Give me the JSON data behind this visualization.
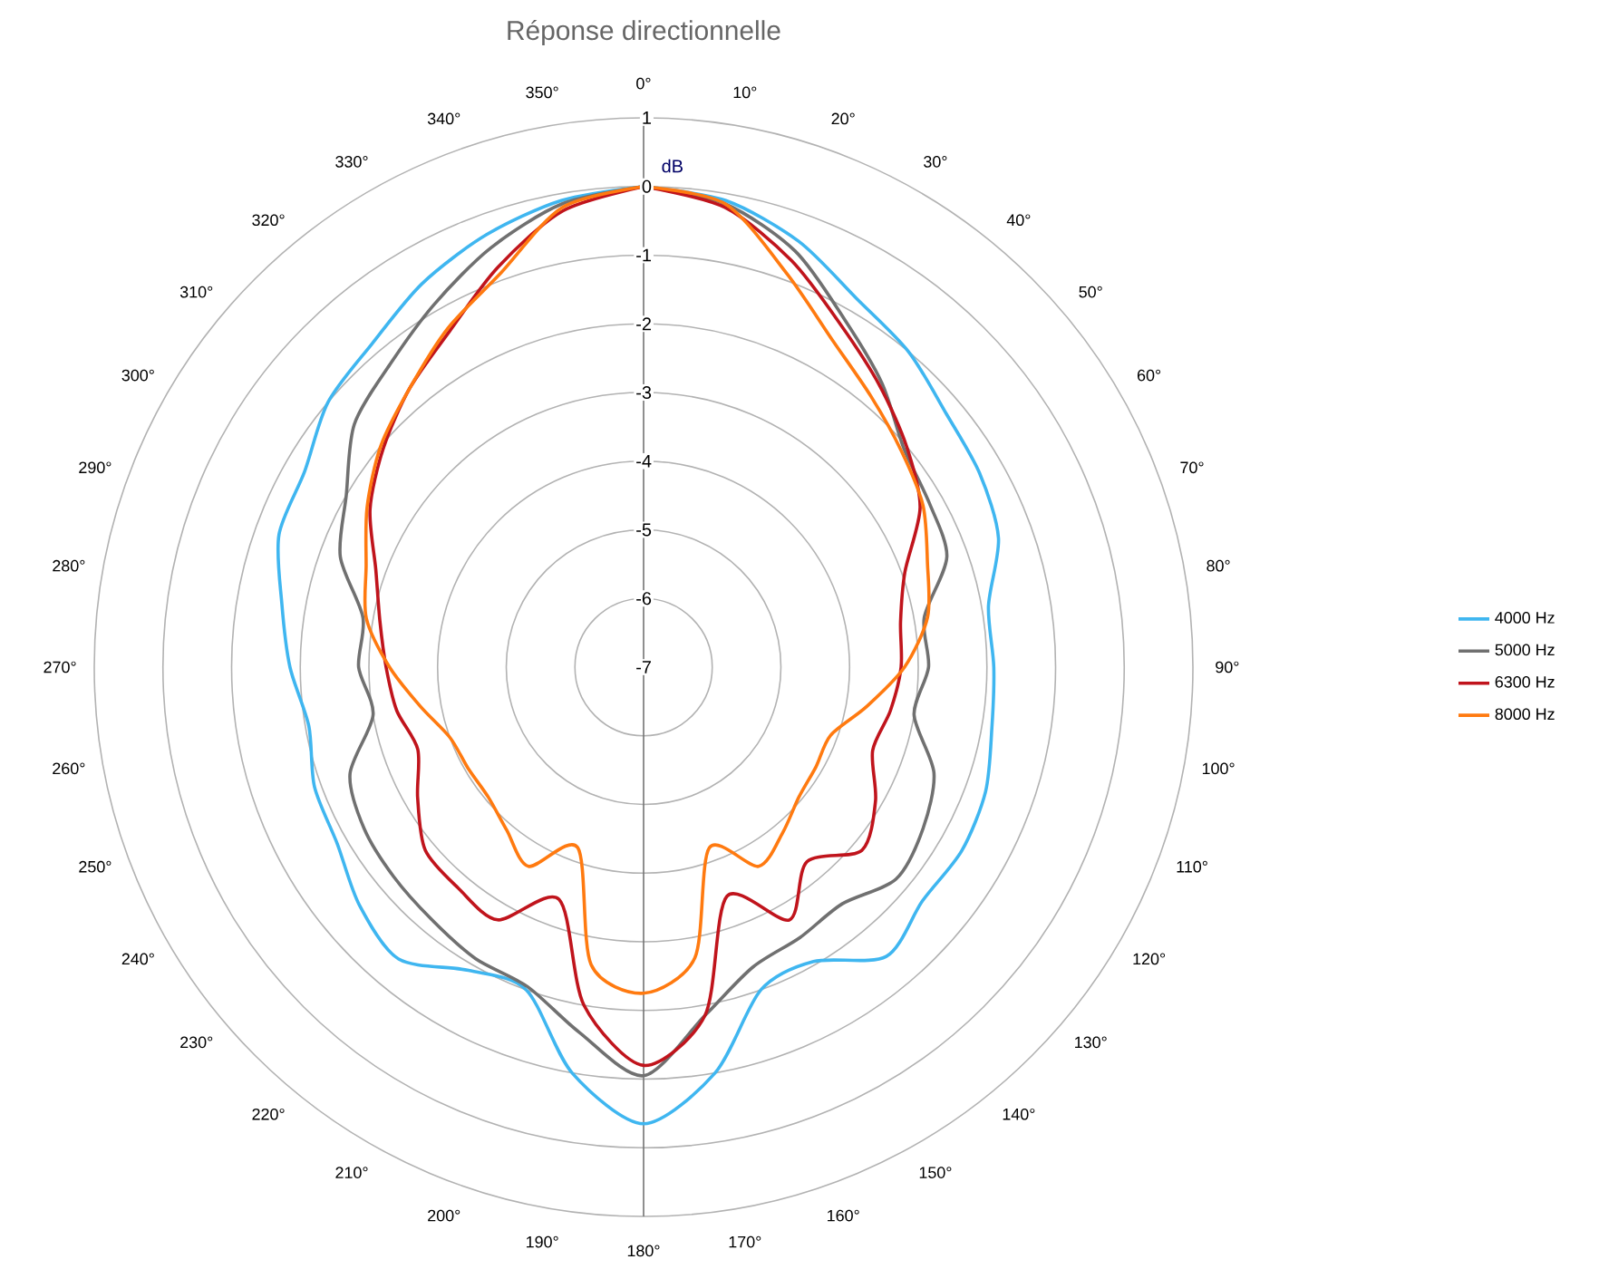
{
  "chart_data": {
    "type": "radar",
    "title": "Réponse directionnelle",
    "ylabel": "dB",
    "categories": [
      "0°",
      "10°",
      "20°",
      "30°",
      "40°",
      "50°",
      "60°",
      "70°",
      "80°",
      "90°",
      "100°",
      "110°",
      "120°",
      "130°",
      "140°",
      "150°",
      "160°",
      "170°",
      "180°",
      "190°",
      "200°",
      "210°",
      "220°",
      "230°",
      "240°",
      "250°",
      "260°",
      "270°",
      "280°",
      "290°",
      "300°",
      "310°",
      "320°",
      "330°",
      "340°",
      "350°"
    ],
    "ylim": [
      -7,
      1
    ],
    "yticks": [
      -7,
      -6,
      -5,
      -4,
      -3,
      -2,
      -1,
      0,
      1
    ],
    "grid": true,
    "legend": "right",
    "series": [
      {
        "name": "4000 Hz",
        "color": "#3fb6f0",
        "values": [
          0,
          -0.1,
          -0.4,
          -0.8,
          -1.0,
          -1.25,
          -1.35,
          -1.5,
          -1.9,
          -1.9,
          -1.85,
          -1.7,
          -1.65,
          -1.7,
          -1.5,
          -2.05,
          -2.0,
          -1.0,
          -0.35,
          -1.0,
          -2.0,
          -1.9,
          -1.45,
          -1.6,
          -1.85,
          -1.9,
          -2.05,
          -1.85,
          -1.65,
          -1.35,
          -1.3,
          -1.0,
          -0.85,
          -0.55,
          -0.3,
          -0.1
        ]
      },
      {
        "name": "5000 Hz",
        "color": "#707070",
        "values": [
          0,
          -0.15,
          -0.55,
          -1.15,
          -1.6,
          -2.05,
          -2.2,
          -2.3,
          -2.85,
          -2.85,
          -3.0,
          -2.5,
          -2.3,
          -2.2,
          -2.5,
          -2.45,
          -2.35,
          -1.85,
          -1.05,
          -1.6,
          -2.05,
          -2.1,
          -2.2,
          -2.25,
          -2.3,
          -2.45,
          -3.0,
          -2.85,
          -2.85,
          -2.3,
          -2.0,
          -1.5,
          -1.25,
          -0.9,
          -0.5,
          -0.15
        ]
      },
      {
        "name": "6300 Hz",
        "color": "#c0141c",
        "values": [
          0,
          -0.2,
          -0.7,
          -1.25,
          -1.65,
          -2.0,
          -2.35,
          -2.95,
          -3.2,
          -3.25,
          -3.35,
          -3.45,
          -3.1,
          -2.85,
          -3.3,
          -2.75,
          -3.45,
          -1.85,
          -1.2,
          -2.0,
          -3.4,
          -2.75,
          -2.8,
          -2.85,
          -3.2,
          -3.5,
          -3.35,
          -3.25,
          -3.1,
          -2.85,
          -2.4,
          -2.05,
          -1.7,
          -1.35,
          -0.8,
          -0.25
        ]
      },
      {
        "name": "8000 Hz",
        "color": "#ff7a10",
        "values": [
          0,
          -0.15,
          -0.9,
          -1.5,
          -1.85,
          -2.1,
          -2.3,
          -2.6,
          -2.8,
          -3.2,
          -3.7,
          -4.1,
          -4.1,
          -4.05,
          -3.85,
          -3.65,
          -4.2,
          -2.7,
          -2.25,
          -2.6,
          -4.2,
          -3.65,
          -3.9,
          -4.05,
          -4.05,
          -4.0,
          -3.7,
          -3.3,
          -2.9,
          -2.7,
          -2.35,
          -2.0,
          -1.7,
          -1.3,
          -0.9,
          -0.2
        ]
      }
    ]
  }
}
